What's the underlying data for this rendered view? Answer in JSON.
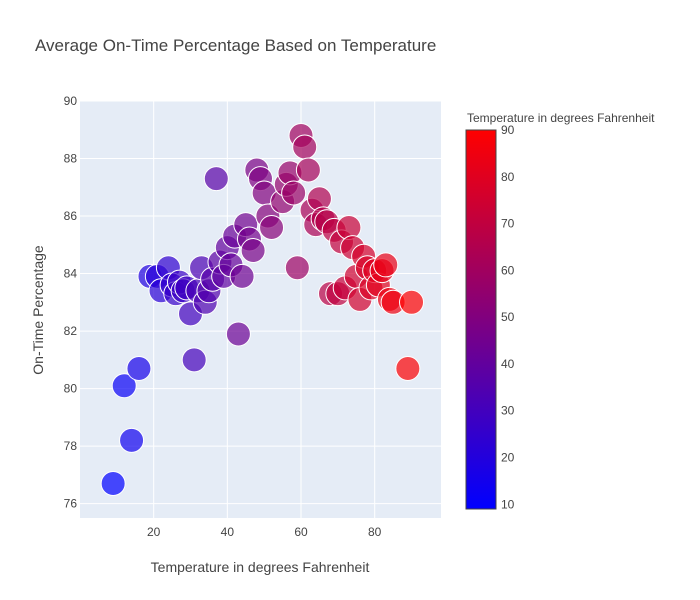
{
  "chart_data": {
    "type": "scatter",
    "title": "Average On-Time Percentage Based on Temperature",
    "xlabel": "Temperature in degrees Fahrenheit",
    "ylabel": "On-Time Percentage",
    "xlim": [
      0,
      98
    ],
    "ylim": [
      75.5,
      90
    ],
    "x_ticks": [
      20,
      40,
      60,
      80
    ],
    "y_ticks": [
      76,
      78,
      80,
      82,
      84,
      86,
      88,
      90
    ],
    "grid": true,
    "colorbar": {
      "title": "Temperature in degrees Fahrenheit",
      "range": [
        9,
        90
      ],
      "ticks": [
        10,
        20,
        30,
        40,
        50,
        60,
        70,
        80,
        90
      ],
      "low_color": "#0000ff",
      "high_color": "#ff0000"
    },
    "colors": {
      "plot_bg": "#e5ecf6",
      "grid": "#ffffff",
      "text": "#444444"
    },
    "marker_opacity": 0.7,
    "points": [
      {
        "x": 9,
        "y": 76.7
      },
      {
        "x": 12,
        "y": 80.1
      },
      {
        "x": 14,
        "y": 78.2
      },
      {
        "x": 16,
        "y": 80.7
      },
      {
        "x": 19,
        "y": 83.9
      },
      {
        "x": 21,
        "y": 83.9
      },
      {
        "x": 22,
        "y": 83.4
      },
      {
        "x": 24,
        "y": 84.2
      },
      {
        "x": 25,
        "y": 83.6
      },
      {
        "x": 26,
        "y": 83.3
      },
      {
        "x": 27,
        "y": 83.7
      },
      {
        "x": 28,
        "y": 83.4
      },
      {
        "x": 29,
        "y": 83.5
      },
      {
        "x": 30,
        "y": 82.6
      },
      {
        "x": 31,
        "y": 81.0
      },
      {
        "x": 32,
        "y": 83.4
      },
      {
        "x": 33,
        "y": 84.2
      },
      {
        "x": 34,
        "y": 83.0
      },
      {
        "x": 35,
        "y": 83.4
      },
      {
        "x": 36,
        "y": 83.8
      },
      {
        "x": 37,
        "y": 87.3
      },
      {
        "x": 38,
        "y": 84.4
      },
      {
        "x": 39,
        "y": 83.9
      },
      {
        "x": 40,
        "y": 84.9
      },
      {
        "x": 41,
        "y": 84.3
      },
      {
        "x": 42,
        "y": 85.3
      },
      {
        "x": 43,
        "y": 81.9
      },
      {
        "x": 44,
        "y": 83.9
      },
      {
        "x": 45,
        "y": 85.7
      },
      {
        "x": 46,
        "y": 85.2
      },
      {
        "x": 47,
        "y": 84.8
      },
      {
        "x": 48,
        "y": 87.6
      },
      {
        "x": 49,
        "y": 87.3
      },
      {
        "x": 50,
        "y": 86.8
      },
      {
        "x": 51,
        "y": 86.0
      },
      {
        "x": 52,
        "y": 85.6
      },
      {
        "x": 55,
        "y": 86.5
      },
      {
        "x": 56,
        "y": 87.1
      },
      {
        "x": 57,
        "y": 87.5
      },
      {
        "x": 58,
        "y": 86.8
      },
      {
        "x": 59,
        "y": 84.2
      },
      {
        "x": 60,
        "y": 88.8
      },
      {
        "x": 61,
        "y": 88.4
      },
      {
        "x": 62,
        "y": 87.6
      },
      {
        "x": 63,
        "y": 86.2
      },
      {
        "x": 64,
        "y": 85.7
      },
      {
        "x": 65,
        "y": 86.6
      },
      {
        "x": 66,
        "y": 85.9
      },
      {
        "x": 67,
        "y": 85.8
      },
      {
        "x": 68,
        "y": 83.3
      },
      {
        "x": 69,
        "y": 85.5
      },
      {
        "x": 70,
        "y": 83.3
      },
      {
        "x": 71,
        "y": 85.1
      },
      {
        "x": 72,
        "y": 83.5
      },
      {
        "x": 73,
        "y": 85.6
      },
      {
        "x": 74,
        "y": 84.9
      },
      {
        "x": 75,
        "y": 83.9
      },
      {
        "x": 76,
        "y": 83.1
      },
      {
        "x": 77,
        "y": 84.6
      },
      {
        "x": 78,
        "y": 84.2
      },
      {
        "x": 79,
        "y": 83.5
      },
      {
        "x": 80,
        "y": 84.1
      },
      {
        "x": 81,
        "y": 83.6
      },
      {
        "x": 82,
        "y": 84.1
      },
      {
        "x": 83,
        "y": 84.3
      },
      {
        "x": 84,
        "y": 83.1
      },
      {
        "x": 85,
        "y": 83.0
      },
      {
        "x": 89,
        "y": 80.7
      },
      {
        "x": 90,
        "y": 83.0
      }
    ]
  }
}
